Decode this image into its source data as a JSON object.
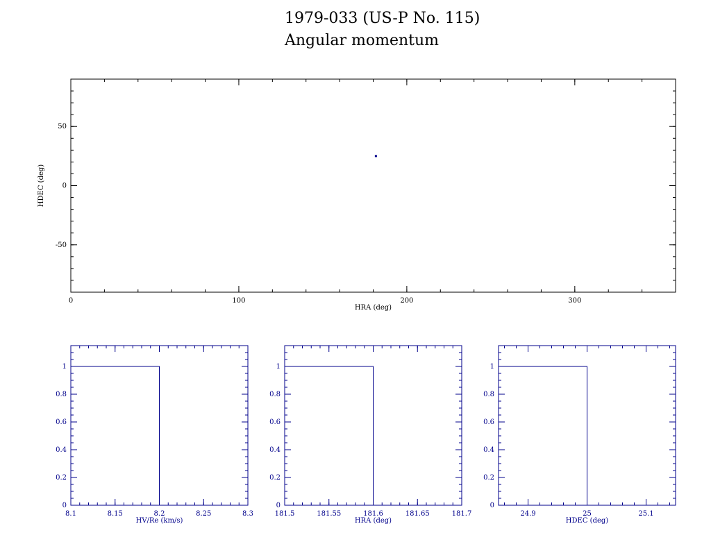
{
  "title": "1979-033 (US-P No. 115)",
  "subtitle": "Angular momentum",
  "colors": {
    "main_axes": "#000000",
    "histogram": "#00008b",
    "point": "#00008b"
  },
  "chart_data": [
    {
      "type": "scatter",
      "xlabel": "HRA (deg)",
      "ylabel": "HDEC (deg)",
      "xlim": [
        0,
        360
      ],
      "ylim": [
        -90,
        90
      ],
      "xticks": [
        0,
        100,
        200,
        300
      ],
      "xtick_labels": [
        "0",
        "100",
        "200",
        "300"
      ],
      "yticks": [
        50,
        0,
        -50
      ],
      "ytick_labels": [
        "50",
        "0",
        "-50"
      ],
      "points": [
        {
          "x": 181.6,
          "y": 25
        }
      ]
    },
    {
      "type": "area",
      "xlabel": "HV/Re (km/s)",
      "xlim": [
        8.1,
        8.3
      ],
      "ylim": [
        0,
        1.15
      ],
      "xticks": [
        8.1,
        8.15,
        8.2,
        8.25,
        8.3
      ],
      "xtick_labels": [
        "8.1",
        "8.15",
        "8.2",
        "8.25",
        "8.3"
      ],
      "yticks": [
        0,
        0.2,
        0.4,
        0.6,
        0.8,
        1
      ],
      "ytick_labels": [
        "0",
        "0.2",
        "0.4",
        "0.6",
        "0.8",
        "1"
      ],
      "step": {
        "value": 1,
        "x_end": 8.2
      }
    },
    {
      "type": "area",
      "xlabel": "HRA (deg)",
      "xlim": [
        181.5,
        181.7
      ],
      "ylim": [
        0,
        1.15
      ],
      "xticks": [
        181.5,
        181.55,
        181.6,
        181.65,
        181.7
      ],
      "xtick_labels": [
        "181.5",
        "181.55",
        "181.6",
        "181.65",
        "181.7"
      ],
      "yticks": [
        0,
        0.2,
        0.4,
        0.6,
        0.8,
        1
      ],
      "ytick_labels": [
        "0",
        "0.2",
        "0.4",
        "0.6",
        "0.8",
        "1"
      ],
      "step": {
        "value": 1,
        "x_end": 181.6
      }
    },
    {
      "type": "area",
      "xlabel": "HDEC (deg)",
      "xlim": [
        24.85,
        25.15
      ],
      "ylim": [
        0,
        1.15
      ],
      "xticks": [
        24.9,
        25,
        25.1
      ],
      "xtick_labels": [
        "24.9",
        "25",
        "25.1"
      ],
      "yticks": [
        0,
        0.2,
        0.4,
        0.6,
        0.8,
        1
      ],
      "ytick_labels": [
        "0",
        "0.2",
        "0.4",
        "0.6",
        "0.8",
        "1"
      ],
      "step": {
        "value": 1,
        "x_end": 25
      }
    }
  ]
}
